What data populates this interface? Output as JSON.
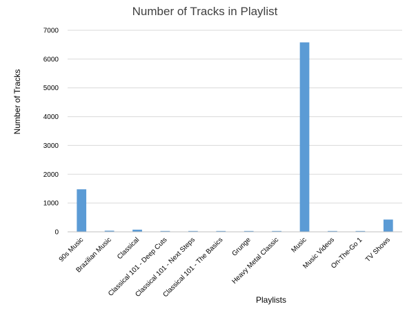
{
  "chart_data": {
    "type": "bar",
    "title": "Number of Tracks in Playlist",
    "xlabel": "Playlists",
    "ylabel": "Number of Tracks",
    "ylim": [
      0,
      7000
    ],
    "yticks": [
      0,
      1000,
      2000,
      3000,
      4000,
      5000,
      6000,
      7000
    ],
    "grid": true,
    "legend": "none",
    "color": "#5b9bd5",
    "categories": [
      "90s Music",
      "Brazilian Music",
      "Classical",
      "Classical 101 - Deep Cuts",
      "Classical 101 - Next Steps",
      "Classical 101 - The Basics",
      "Grunge",
      "Heavy Metal Classic",
      "Music",
      "Music Videos",
      "On-The-Go 1",
      "TV Shows"
    ],
    "values": [
      1477,
      39,
      75,
      25,
      25,
      25,
      15,
      26,
      6580,
      1,
      1,
      426
    ]
  }
}
